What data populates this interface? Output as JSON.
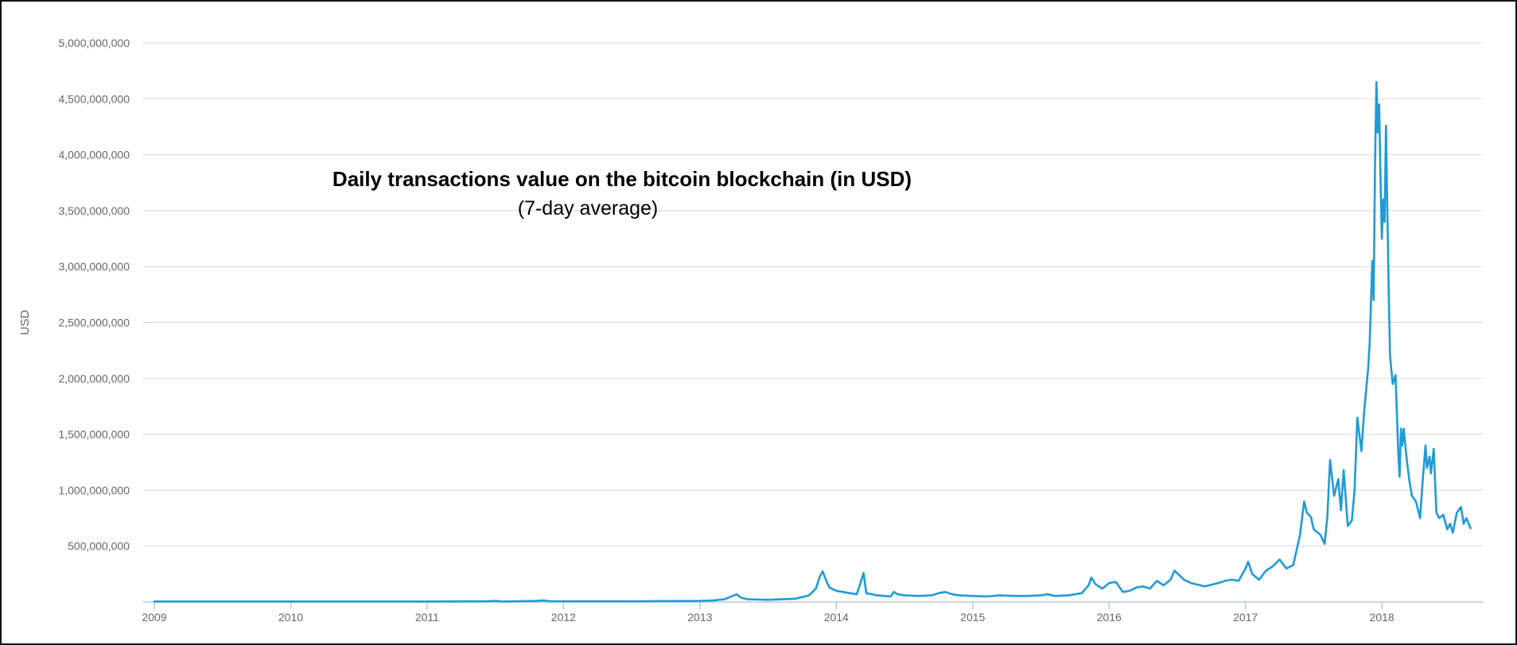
{
  "chart_data": {
    "type": "line",
    "title": "Daily transactions value on the bitcoin blockchain (in USD)",
    "subtitle": "(7-day average)",
    "ylabel": "USD",
    "xlabel": "",
    "grid": true,
    "legend": "none",
    "line_color": "#1f9bd7",
    "xlim": [
      2009.0,
      2018.74
    ],
    "ylim": [
      0,
      5000000000
    ],
    "x_ticks": [
      "2009",
      "2010",
      "2011",
      "2012",
      "2013",
      "2014",
      "2015",
      "2016",
      "2017",
      "2018"
    ],
    "y_ticks": [
      "500,000,000",
      "1,000,000,000",
      "1,500,000,000",
      "2,000,000,000",
      "2,500,000,000",
      "3,000,000,000",
      "3,500,000,000",
      "4,000,000,000",
      "4,500,000,000",
      "5,000,000,000"
    ],
    "series": [
      {
        "x": [
          2009.0,
          2010.0,
          2011.0,
          2011.45,
          2011.5,
          2011.55,
          2011.8,
          2011.85,
          2011.9,
          2012.0,
          2012.5,
          2013.0,
          2013.1,
          2013.18,
          2013.22,
          2013.27,
          2013.3,
          2013.35,
          2013.5,
          2013.7,
          2013.8,
          2013.85,
          2013.88,
          2013.9,
          2013.93,
          2013.95,
          2014.0,
          2014.05,
          2014.1,
          2014.15,
          2014.18,
          2014.2,
          2014.22,
          2014.3,
          2014.4,
          2014.42,
          2014.45,
          2014.5,
          2014.6,
          2014.7,
          2014.75,
          2014.8,
          2014.85,
          2014.9,
          2015.0,
          2015.1,
          2015.2,
          2015.3,
          2015.4,
          2015.5,
          2015.55,
          2015.6,
          2015.7,
          2015.8,
          2015.85,
          2015.87,
          2015.9,
          2015.95,
          2016.0,
          2016.05,
          2016.1,
          2016.15,
          2016.2,
          2016.25,
          2016.3,
          2016.35,
          2016.4,
          2016.45,
          2016.48,
          2016.55,
          2016.6,
          2016.7,
          2016.8,
          2016.85,
          2016.9,
          2016.95,
          2017.0,
          2017.02,
          2017.05,
          2017.1,
          2017.15,
          2017.2,
          2017.25,
          2017.3,
          2017.35,
          2017.4,
          2017.43,
          2017.45,
          2017.48,
          2017.5,
          2017.55,
          2017.58,
          2017.6,
          2017.62,
          2017.65,
          2017.68,
          2017.7,
          2017.72,
          2017.75,
          2017.78,
          2017.8,
          2017.82,
          2017.85,
          2017.87,
          2017.9,
          2017.91,
          2017.93,
          2017.94,
          2017.95,
          2017.96,
          2017.97,
          2017.98,
          2017.99,
          2018.0,
          2018.01,
          2018.02,
          2018.03,
          2018.04,
          2018.05,
          2018.06,
          2018.08,
          2018.1,
          2018.12,
          2018.13,
          2018.14,
          2018.15,
          2018.16,
          2018.18,
          2018.2,
          2018.22,
          2018.25,
          2018.28,
          2018.3,
          2018.32,
          2018.33,
          2018.35,
          2018.36,
          2018.38,
          2018.4,
          2018.42,
          2018.45,
          2018.48,
          2018.5,
          2018.52,
          2018.55,
          2018.58,
          2018.6,
          2018.62,
          2018.65
        ],
        "y": [
          5000000,
          5000000,
          5000000,
          8000000,
          10000000,
          5000000,
          10000000,
          15000000,
          8000000,
          7000000,
          7000000,
          10000000,
          15000000,
          25000000,
          45000000,
          70000000,
          40000000,
          25000000,
          20000000,
          30000000,
          60000000,
          120000000,
          230000000,
          275000000,
          180000000,
          130000000,
          100000000,
          90000000,
          80000000,
          70000000,
          180000000,
          260000000,
          80000000,
          60000000,
          50000000,
          90000000,
          70000000,
          60000000,
          55000000,
          60000000,
          80000000,
          90000000,
          70000000,
          60000000,
          55000000,
          50000000,
          60000000,
          55000000,
          55000000,
          60000000,
          70000000,
          55000000,
          60000000,
          80000000,
          150000000,
          220000000,
          160000000,
          120000000,
          170000000,
          180000000,
          90000000,
          100000000,
          130000000,
          140000000,
          120000000,
          190000000,
          150000000,
          200000000,
          280000000,
          200000000,
          170000000,
          140000000,
          170000000,
          190000000,
          200000000,
          190000000,
          300000000,
          360000000,
          250000000,
          200000000,
          280000000,
          320000000,
          380000000,
          300000000,
          330000000,
          600000000,
          900000000,
          800000000,
          760000000,
          650000000,
          600000000,
          520000000,
          750000000,
          1270000000,
          950000000,
          1100000000,
          820000000,
          1180000000,
          680000000,
          730000000,
          1000000000,
          1650000000,
          1350000000,
          1700000000,
          2100000000,
          2300000000,
          3050000000,
          2700000000,
          3900000000,
          4650000000,
          4200000000,
          4450000000,
          3800000000,
          3250000000,
          3600000000,
          3400000000,
          4260000000,
          3500000000,
          2800000000,
          2200000000,
          1950000000,
          2030000000,
          1350000000,
          1120000000,
          1550000000,
          1400000000,
          1550000000,
          1300000000,
          1100000000,
          950000000,
          900000000,
          750000000,
          1100000000,
          1400000000,
          1200000000,
          1300000000,
          1150000000,
          1370000000,
          800000000,
          750000000,
          780000000,
          650000000,
          700000000,
          620000000,
          800000000,
          850000000,
          700000000,
          750000000,
          660000000
        ]
      }
    ]
  }
}
